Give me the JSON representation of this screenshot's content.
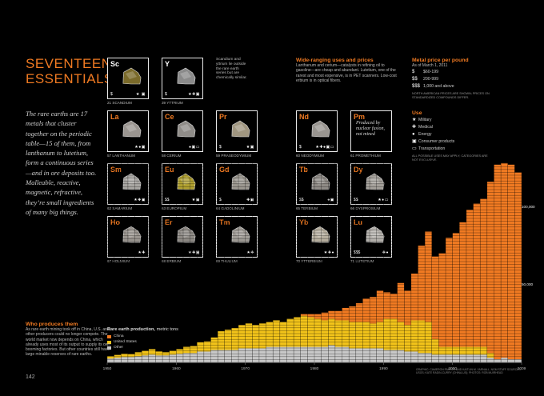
{
  "page": {
    "title_lines": [
      "SEVENTEEN",
      "ESSENTIALS"
    ],
    "intro": "The rare earths are 17 metals that cluster together on the periodic table—15 of them, from lanthanum to lutetium, form a continuous series—and in ore deposits too. Malleable, reactive, magnetic, refractive, they’re small ingredients of many big things.",
    "page_number": "142"
  },
  "sc_note": "Scandium and yttrium lie outside the rare earth series but are chemically similar.",
  "wide_ranging": {
    "heading": "Wide-ranging uses and prices",
    "body": "Lanthanum and cerium—catalysts in refining oil to gasoline—are cheap and abundant. Lutetium, one of the rarest and most expensive, is in PET scanners. Low-cost erbium is in optical fibers."
  },
  "metal_price": {
    "heading": "Metal price per pound",
    "subhead": "As of March 1, 2011",
    "levels": [
      {
        "icon": "$",
        "label": "$60-199"
      },
      {
        "icon": "$$",
        "label": "200-999"
      },
      {
        "icon": "$$$",
        "label": "1,000 and above"
      }
    ],
    "note": "NORTH AMERICAN PRICES ARE SHOWN; PRICES ON STANDARDIZED COMPOUNDS DIFFER."
  },
  "use_legend": {
    "heading": "Use",
    "items": [
      {
        "icon": "★",
        "label": "Military"
      },
      {
        "icon": "✚",
        "label": "Medical"
      },
      {
        "icon": "●",
        "label": "Energy"
      },
      {
        "icon": "▣",
        "label": "Consumer products"
      },
      {
        "icon": "▭",
        "label": "Transportation"
      }
    ],
    "note": "ALL POSSIBLE USES MAY APPLY; CATEGORIES ARE NOT EXCLUSIVE."
  },
  "elements": [
    {
      "num": "21",
      "sym": "Sc",
      "name": "SCANDIUM",
      "price": "$",
      "uses": "★ ▣",
      "color": "#7a6a2a",
      "row": 0,
      "col": 0
    },
    {
      "num": "39",
      "sym": "Y",
      "name": "YTTRIUM",
      "price": "$",
      "uses": "★✚▣",
      "color": "#8a8a8a",
      "row": 0,
      "col": 1
    },
    {
      "num": "57",
      "sym": "La",
      "name": "LANTHANUM",
      "price": "",
      "uses": "★●▣",
      "color": "#9a9590",
      "row": 1,
      "col": 0
    },
    {
      "num": "58",
      "sym": "Ce",
      "name": "CERIUM",
      "price": "",
      "uses": "●▣▭",
      "color": "#8f8c88",
      "row": 1,
      "col": 1
    },
    {
      "num": "59",
      "sym": "Pr",
      "name": "PRASEODYMIUM",
      "price": "$",
      "uses": "★▣",
      "color": "#a09680",
      "row": 1,
      "col": 2
    },
    {
      "num": "60",
      "sym": "Nd",
      "name": "NEODYMIUM",
      "price": "$",
      "uses": "★✚●▣▭",
      "color": "#999590",
      "row": 1,
      "col": 4
    },
    {
      "num": "61",
      "sym": "Pm",
      "name": "PROMETHIUM",
      "price": "",
      "uses": "",
      "color": "",
      "row": 1,
      "col": 5
    },
    {
      "num": "62",
      "sym": "Sm",
      "name": "SAMARIUM",
      "price": "",
      "uses": "★✚▣",
      "color": "#a8a6a2",
      "row": 2,
      "col": 0
    },
    {
      "num": "63",
      "sym": "Eu",
      "name": "EUROPIUM",
      "price": "$$",
      "uses": "★▣",
      "color": "#b0a030",
      "row": 2,
      "col": 1
    },
    {
      "num": "64",
      "sym": "Gd",
      "name": "GADOLINIUM",
      "price": "$",
      "uses": "✚▣",
      "color": "#9c9890",
      "row": 2,
      "col": 2
    },
    {
      "num": "65",
      "sym": "Tb",
      "name": "TERBIUM",
      "price": "$$",
      "uses": "●▣",
      "color": "#8f8b86",
      "row": 2,
      "col": 4
    },
    {
      "num": "66",
      "sym": "Dy",
      "name": "DYSPROSIUM",
      "price": "$$",
      "uses": "★●▭",
      "color": "#a4a09a",
      "row": 2,
      "col": 5
    },
    {
      "num": "67",
      "sym": "Ho",
      "name": "HOLMIUM",
      "price": "",
      "uses": "★✚",
      "color": "#9a958f",
      "row": 3,
      "col": 0
    },
    {
      "num": "68",
      "sym": "Er",
      "name": "ERBIUM",
      "price": "",
      "uses": "★✚▣",
      "color": "#8e8a85",
      "row": 3,
      "col": 1
    },
    {
      "num": "69",
      "sym": "Tm",
      "name": "THULIUM",
      "price": "",
      "uses": "★✚",
      "color": "#a09c96",
      "row": 3,
      "col": 2
    },
    {
      "num": "70",
      "sym": "Yb",
      "name": "YTTERBIUM",
      "price": "",
      "uses": "★✚●",
      "color": "#b8b0a0",
      "row": 3,
      "col": 4
    },
    {
      "num": "71",
      "sym": "Lu",
      "name": "LUTETIUM",
      "price": "$$$",
      "uses": "✚●",
      "color": "#b5b2ad",
      "row": 3,
      "col": 5
    }
  ],
  "pm_text": "Produced by nuclear fusion, not mined",
  "who": {
    "heading": "Who produces them",
    "body": "As rare earth mining took off in China, U.S. and other producers could no longer compete. The world market now depends on China, which already uses most of its output to supply its own booming factories. But other countries still have large minable reserves of rare earths."
  },
  "credits": "GRAPHIC: CAMERON PARKER AND KAITLIN M. YARNALL, NGM STAFF SOURCES: USGS; KATE RADIN-CURRY (CHINA-US); PHOTOS: ROB MUIRHEAD",
  "colors": {
    "china": "#f07a22",
    "us": "#f2c31a",
    "other": "#c8c8c8",
    "accent": "#f07a22"
  },
  "chart_data": {
    "type": "area",
    "title": "Rare earth production,",
    "subtitle": "metric tons",
    "series_names": [
      "China",
      "United States",
      "Other"
    ],
    "x": [
      1950,
      1951,
      1952,
      1953,
      1954,
      1955,
      1956,
      1957,
      1958,
      1959,
      1960,
      1961,
      1962,
      1963,
      1964,
      1965,
      1966,
      1967,
      1968,
      1969,
      1970,
      1971,
      1972,
      1973,
      1974,
      1975,
      1976,
      1977,
      1978,
      1979,
      1980,
      1981,
      1982,
      1983,
      1984,
      1985,
      1986,
      1987,
      1988,
      1989,
      1990,
      1991,
      1992,
      1993,
      1994,
      1995,
      1996,
      1997,
      1998,
      1999,
      2000,
      2001,
      2002,
      2003,
      2004,
      2005,
      2006,
      2007,
      2008,
      2009
    ],
    "china": [
      0,
      0,
      0,
      0,
      0,
      0,
      0,
      0,
      0,
      0,
      0,
      0,
      0,
      0,
      0,
      0,
      0,
      0,
      0,
      0,
      0,
      0,
      0,
      0,
      0,
      0,
      0,
      0,
      1000,
      2000,
      3000,
      5000,
      5000,
      6000,
      8000,
      10000,
      12000,
      15000,
      17000,
      20000,
      17000,
      16000,
      25000,
      22000,
      30000,
      48000,
      58000,
      53000,
      60000,
      70000,
      73000,
      80000,
      88000,
      92000,
      95000,
      110000,
      125000,
      125000,
      125000,
      120000
    ],
    "united_states": [
      1500,
      1800,
      2000,
      1800,
      2500,
      3000,
      3500,
      2500,
      2000,
      2500,
      3000,
      4000,
      4500,
      6000,
      6500,
      8000,
      12000,
      13000,
      14000,
      15000,
      16000,
      15000,
      16000,
      16000,
      17000,
      16000,
      18000,
      19000,
      20000,
      19000,
      18000,
      17000,
      17000,
      17000,
      17000,
      17000,
      17000,
      17000,
      16000,
      17000,
      20000,
      20000,
      18000,
      17000,
      20000,
      21000,
      20000,
      10000,
      5000,
      5000,
      5000,
      5000,
      5000,
      5000,
      5000,
      3000,
      0,
      0,
      0,
      0
    ],
    "other": [
      2500,
      3000,
      3500,
      3500,
      4000,
      4500,
      5000,
      4500,
      4500,
      5000,
      5500,
      6000,
      6000,
      7000,
      7000,
      8000,
      8000,
      8000,
      8000,
      9000,
      9000,
      9000,
      9000,
      10000,
      10000,
      10000,
      10000,
      10000,
      10000,
      10000,
      10000,
      10000,
      11000,
      10000,
      10000,
      9000,
      9000,
      9000,
      9000,
      9000,
      8000,
      8000,
      8000,
      7000,
      7000,
      6000,
      6000,
      5000,
      5000,
      5000,
      5000,
      5000,
      5000,
      5000,
      5000,
      3000,
      2000,
      3000,
      2000,
      2000
    ],
    "ylim": [
      0,
      130000
    ],
    "y_tick_labels": [
      "50,000",
      "100,000"
    ],
    "x_tick_labels": [
      "1950",
      "1960",
      "1970",
      "1980",
      "1990",
      "2000",
      "2009"
    ]
  }
}
